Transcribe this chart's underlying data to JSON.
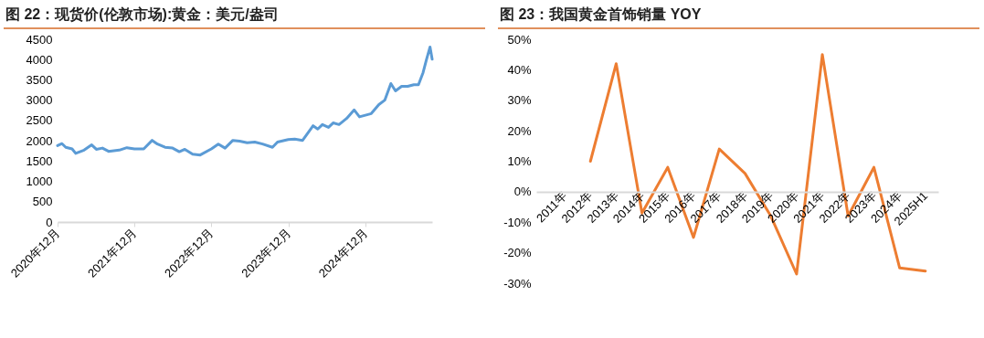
{
  "chart_data": [
    {
      "type": "line",
      "title": "图 22：现货价(伦敦市场):黄金：美元/盎司",
      "x": [
        "2020-12-01",
        "2020-12-22",
        "2021-01-09",
        "2021-02-08",
        "2021-02-25",
        "2021-04-06",
        "2021-05-12",
        "2021-06-03",
        "2021-07-02",
        "2021-07-31",
        "2021-09-20",
        "2021-10-26",
        "2021-12-01",
        "2022-01-14",
        "2022-02-23",
        "2022-03-20",
        "2022-04-25",
        "2022-05-31",
        "2022-07-02",
        "2022-07-28",
        "2022-09-03",
        "2022-10-09",
        "2022-12-01",
        "2023-01-03",
        "2023-02-04",
        "2023-03-13",
        "2023-04-14",
        "2023-05-20",
        "2023-06-25",
        "2023-08-01",
        "2023-09-17",
        "2023-10-11",
        "2023-12-01",
        "2024-01-01",
        "2024-02-07",
        "2024-03-28",
        "2024-04-19",
        "2024-05-11",
        "2024-06-09",
        "2024-07-01",
        "2024-07-29",
        "2024-09-03",
        "2024-10-09",
        "2024-11-03",
        "2024-12-01",
        "2024-12-29",
        "2025-02-03",
        "2025-03-03",
        "2025-04-01",
        "2025-04-23",
        "2025-05-22",
        "2025-06-20",
        "2025-07-19",
        "2025-08-10",
        "2025-09-01",
        "2025-09-16",
        "2025-10-04",
        "2025-10-14"
      ],
      "series": [
        {
          "color": "#5b9bd5",
          "values": [
            1880,
            1930,
            1840,
            1800,
            1690,
            1770,
            1900,
            1790,
            1820,
            1740,
            1770,
            1830,
            1800,
            1800,
            2010,
            1920,
            1840,
            1820,
            1730,
            1790,
            1670,
            1650,
            1800,
            1920,
            1820,
            2010,
            1990,
            1950,
            1970,
            1920,
            1840,
            1970,
            2030,
            2040,
            2010,
            2370,
            2290,
            2400,
            2330,
            2440,
            2400,
            2550,
            2760,
            2590,
            2630,
            2670,
            2890,
            3000,
            3410,
            3230,
            3340,
            3340,
            3380,
            3380,
            3680,
            3980,
            4310,
            4010
          ]
        }
      ],
      "xlim": [
        "2020-12-01",
        "2025-10-14"
      ],
      "xticks": [
        {
          "value": "2020-12",
          "label": "2020年12月"
        },
        {
          "value": "2021-12",
          "label": "2021年12月"
        },
        {
          "value": "2022-12",
          "label": "2022年12月"
        },
        {
          "value": "2023-12",
          "label": "2023年12月"
        },
        {
          "value": "2024-12",
          "label": "2024年12月"
        }
      ],
      "ylim": [
        0,
        4500
      ],
      "yticks": [
        0,
        500,
        1000,
        1500,
        2000,
        2500,
        3000,
        3500,
        4000,
        4500
      ]
    },
    {
      "type": "line",
      "title": "图 23：我国黄金首饰销量 YOY",
      "categories": [
        "2011年",
        "2012年",
        "2013年",
        "2014年",
        "2015年",
        "2016年",
        "2017年",
        "2018年",
        "2019年",
        "2020年",
        "2021年",
        "2022年",
        "2023年",
        "2024年",
        "2025H1"
      ],
      "series": [
        {
          "color": "#ed7d31",
          "values": [
            null,
            10,
            42,
            -7,
            8,
            -15,
            14,
            6,
            -8,
            -27,
            45,
            -8,
            8,
            -25,
            -26
          ]
        }
      ],
      "ylim": [
        -30,
        50
      ],
      "yticks": [
        {
          "value": -30,
          "label": "-30%"
        },
        {
          "value": -20,
          "label": "-20%"
        },
        {
          "value": -10,
          "label": "-10%"
        },
        {
          "value": 0,
          "label": "0%"
        },
        {
          "value": 10,
          "label": "10%"
        },
        {
          "value": 20,
          "label": "20%"
        },
        {
          "value": 30,
          "label": "30%"
        },
        {
          "value": 40,
          "label": "40%"
        },
        {
          "value": 50,
          "label": "50%"
        }
      ]
    }
  ]
}
